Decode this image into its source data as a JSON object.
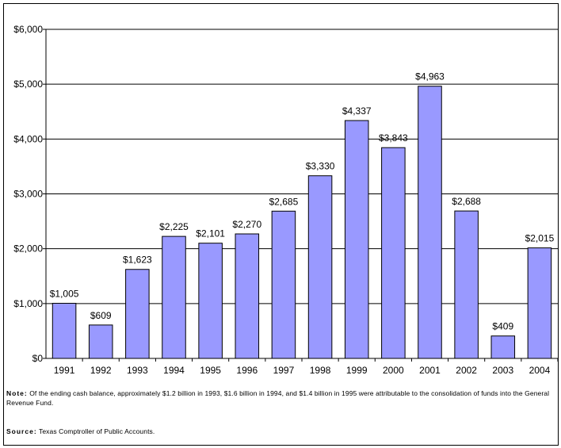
{
  "chart_data": {
    "type": "bar",
    "categories": [
      "1991",
      "1992",
      "1993",
      "1994",
      "1995",
      "1996",
      "1997",
      "1998",
      "1999",
      "2000",
      "2001",
      "2002",
      "2003",
      "2004"
    ],
    "values": [
      1005,
      609,
      1623,
      2225,
      2101,
      2270,
      2685,
      3330,
      4337,
      3843,
      4963,
      2688,
      409,
      2015
    ],
    "data_labels": [
      "$1,005",
      "$609",
      "$1,623",
      "$2,225",
      "$2,101",
      "$2,270",
      "$2,685",
      "$3,330",
      "$4,337",
      "$3,843",
      "$4,963",
      "$2,688",
      "$409",
      "$2,015"
    ],
    "y_ticks": [
      0,
      1000,
      2000,
      3000,
      4000,
      5000,
      6000
    ],
    "y_tick_labels": [
      "$0",
      "$1,000",
      "$2,000",
      "$3,000",
      "$4,000",
      "$5,000",
      "$6,000"
    ],
    "ylim": [
      0,
      6000
    ],
    "title": "",
    "xlabel": "",
    "ylabel": "",
    "grid": true,
    "legend": false,
    "bar_color": "#9999FF",
    "bar_edge_color": "#000000"
  },
  "notes": {
    "note_label": "Note:",
    "note_text": "Of the ending cash balance, approximately $1.2 billion in 1993, $1.6 billion in 1994, and $1.4 billion in 1995 were attributable to the consolidation of funds into the General Revenue Fund.",
    "source_label": "Source:",
    "source_text": "Texas Comptroller of Public Accounts."
  }
}
